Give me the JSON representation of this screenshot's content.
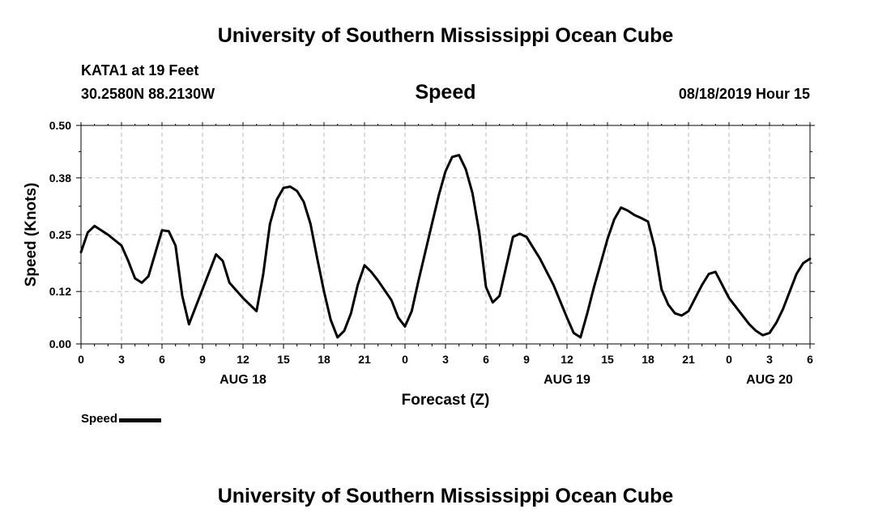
{
  "header": {
    "top_title": "University of Southern Mississippi Ocean Cube",
    "station": "KATA1 at 19 Feet",
    "coords": "30.2580N 88.2130W",
    "plot_title": "Speed",
    "datetime": "08/18/2019 Hour 15"
  },
  "footer": {
    "bottom_title": "University of Southern Mississippi Ocean Cube"
  },
  "legend": {
    "label": "Speed"
  },
  "chart_data": {
    "type": "line",
    "title": "Speed",
    "xlabel": "Forecast (Z)",
    "ylabel": "Speed (Knots)",
    "x_unit": "hours from 08/18 00Z",
    "xlim": [
      0,
      54
    ],
    "ylim": [
      0,
      0.5
    ],
    "y_ticks": [
      "0.00",
      "0.12",
      "0.25",
      "0.38",
      "0.50"
    ],
    "x_ticks": [
      "0",
      "3",
      "6",
      "9",
      "12",
      "15",
      "18",
      "21",
      "0",
      "3",
      "6",
      "9",
      "12",
      "15",
      "18",
      "21",
      "0",
      "3",
      "6"
    ],
    "date_labels": [
      {
        "hour": 12,
        "label": "AUG 18"
      },
      {
        "hour": 36,
        "label": "AUG 19"
      },
      {
        "hour": 51,
        "label": "AUG 20"
      }
    ],
    "grid": true,
    "color": "#000000",
    "series": [
      {
        "name": "Speed",
        "x": [
          0,
          0.5,
          1,
          1.5,
          2,
          3,
          3.5,
          4,
          4.5,
          5,
          6,
          6.5,
          7,
          7.5,
          8,
          9,
          10,
          10.5,
          11,
          12,
          13,
          13.5,
          14,
          14.5,
          15,
          15.5,
          16,
          16.5,
          17,
          17.5,
          18,
          18.5,
          19,
          19.5,
          20,
          20.5,
          21,
          21.5,
          22,
          23,
          23.5,
          24,
          24.5,
          25,
          25.5,
          26,
          26.5,
          27,
          27.5,
          28,
          28.5,
          29,
          29.5,
          30,
          30.5,
          31,
          32,
          32.5,
          33,
          33.5,
          34,
          34.5,
          35,
          36,
          36.5,
          37,
          37.5,
          38,
          38.5,
          39,
          39.5,
          40,
          40.5,
          41,
          41.5,
          42,
          42.5,
          43,
          43.5,
          44,
          44.5,
          45,
          45.5,
          46,
          46.5,
          47,
          48,
          48.5,
          49,
          49.5,
          50,
          50.5,
          51,
          51.5,
          52,
          52.5,
          53,
          53.5,
          54
        ],
        "y": [
          0.21,
          0.255,
          0.27,
          0.26,
          0.25,
          0.225,
          0.19,
          0.15,
          0.14,
          0.155,
          0.26,
          0.258,
          0.225,
          0.11,
          0.045,
          0.125,
          0.205,
          0.19,
          0.14,
          0.105,
          0.075,
          0.16,
          0.275,
          0.33,
          0.357,
          0.36,
          0.35,
          0.325,
          0.275,
          0.195,
          0.12,
          0.055,
          0.015,
          0.03,
          0.07,
          0.135,
          0.18,
          0.165,
          0.145,
          0.1,
          0.06,
          0.04,
          0.075,
          0.145,
          0.21,
          0.275,
          0.34,
          0.395,
          0.428,
          0.432,
          0.4,
          0.345,
          0.255,
          0.13,
          0.095,
          0.11,
          0.245,
          0.252,
          0.245,
          0.22,
          0.195,
          0.165,
          0.135,
          0.06,
          0.025,
          0.015,
          0.07,
          0.13,
          0.185,
          0.24,
          0.285,
          0.312,
          0.305,
          0.295,
          0.288,
          0.28,
          0.22,
          0.125,
          0.09,
          0.07,
          0.065,
          0.075,
          0.105,
          0.135,
          0.16,
          0.165,
          0.105,
          0.085,
          0.065,
          0.045,
          0.03,
          0.02,
          0.025,
          0.048,
          0.08,
          0.12,
          0.16,
          0.185,
          0.195
        ]
      }
    ]
  }
}
